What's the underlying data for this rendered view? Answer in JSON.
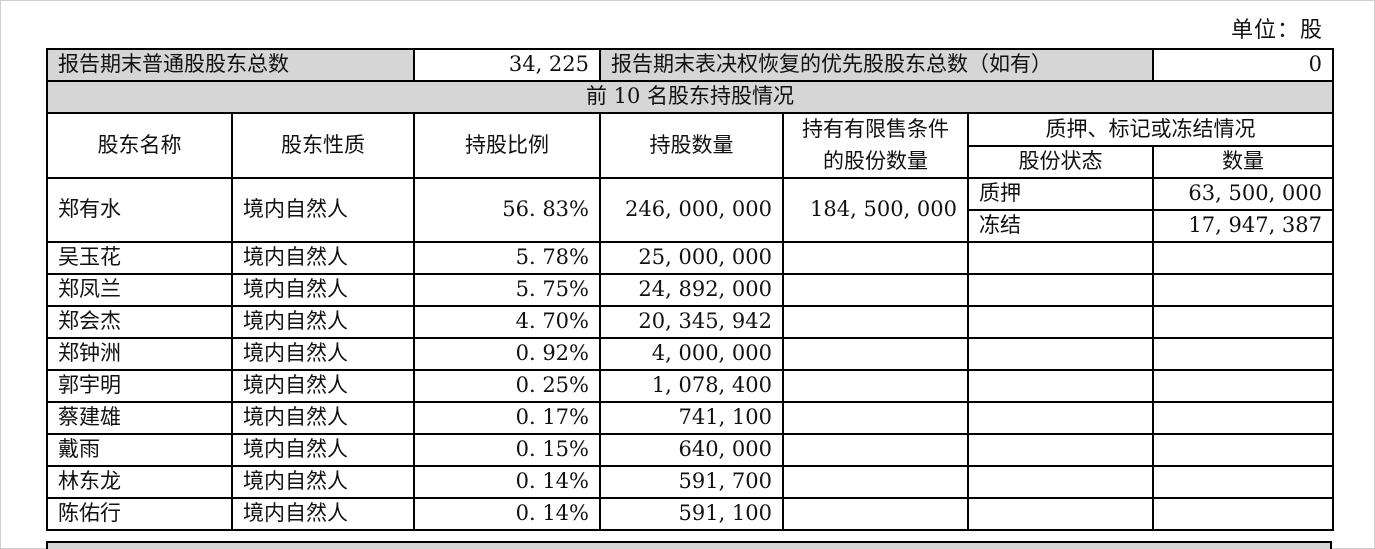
{
  "unit": "单位：股",
  "summary": {
    "total_label": "报告期末普通股股东总数",
    "total_value": "34, 225",
    "pref_label": "报告期末表决权恢复的优先股股东总数（如有）",
    "pref_value": "0"
  },
  "section_title": "前 10 名股东持股情况",
  "headers": {
    "name": "股东名称",
    "nature": "股东性质",
    "ratio": "持股比例",
    "quantity": "持股数量",
    "restricted": "持有有限售条件的股份数量",
    "pledge_group": "质押、标记或冻结情况",
    "share_status": "股份状态",
    "amount": "数量"
  },
  "shareholders": [
    {
      "name": "郑有水",
      "nature": "境内自然人",
      "ratio": "56. 83%",
      "quantity": "246, 000, 000",
      "restricted": "184, 500, 000",
      "pledges": [
        {
          "status": "质押",
          "amount": "63, 500, 000"
        },
        {
          "status": "冻结",
          "amount": "17, 947, 387"
        }
      ]
    },
    {
      "name": "吴玉花",
      "nature": "境内自然人",
      "ratio": "5. 78%",
      "quantity": "25, 000, 000"
    },
    {
      "name": "郑凤兰",
      "nature": "境内自然人",
      "ratio": "5. 75%",
      "quantity": "24, 892, 000"
    },
    {
      "name": "郑会杰",
      "nature": "境内自然人",
      "ratio": "4. 70%",
      "quantity": "20, 345, 942"
    },
    {
      "name": "郑钟洲",
      "nature": "境内自然人",
      "ratio": "0. 92%",
      "quantity": "4, 000, 000"
    },
    {
      "name": "郭宇明",
      "nature": "境内自然人",
      "ratio": "0. 25%",
      "quantity": "1, 078, 400"
    },
    {
      "name": "蔡建雄",
      "nature": "境内自然人",
      "ratio": "0. 17%",
      "quantity": "741, 100"
    },
    {
      "name": "戴雨",
      "nature": "境内自然人",
      "ratio": "0. 15%",
      "quantity": "640, 000"
    },
    {
      "name": "林东龙",
      "nature": "境内自然人",
      "ratio": "0. 14%",
      "quantity": "591, 700"
    },
    {
      "name": "陈佑行",
      "nature": "境内自然人",
      "ratio": "0. 14%",
      "quantity": "591, 100"
    }
  ]
}
